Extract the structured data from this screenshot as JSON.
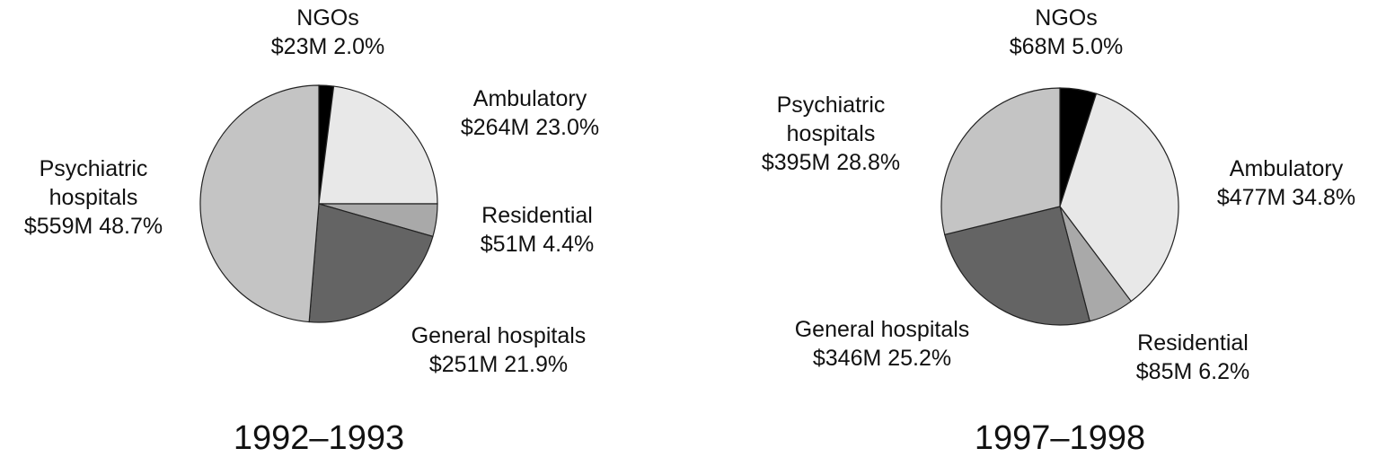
{
  "chart_data": [
    {
      "type": "pie",
      "title": "1992–1993",
      "slices": [
        {
          "name": "NGOs",
          "value_label": "$23M 2.0%",
          "value": 23,
          "percent": 2.0,
          "color": "#000000"
        },
        {
          "name": "Ambulatory",
          "value_label": "$264M 23.0%",
          "value": 264,
          "percent": 23.0,
          "color": "#e8e8e8"
        },
        {
          "name": "Residential",
          "value_label": "$51M 4.4%",
          "value": 51,
          "percent": 4.4,
          "color": "#a9a9a9"
        },
        {
          "name": "General hospitals",
          "value_label": "$251M 21.9%",
          "value": 251,
          "percent": 21.9,
          "color": "#646464"
        },
        {
          "name": "Psychiatric\nhospitals",
          "value_label": "$559M 48.7%",
          "value": 559,
          "percent": 48.7,
          "color": "#c4c4c4"
        }
      ]
    },
    {
      "type": "pie",
      "title": "1997–1998",
      "slices": [
        {
          "name": "NGOs",
          "value_label": "$68M 5.0%",
          "value": 68,
          "percent": 5.0,
          "color": "#000000"
        },
        {
          "name": "Ambulatory",
          "value_label": "$477M 34.8%",
          "value": 477,
          "percent": 34.8,
          "color": "#e8e8e8"
        },
        {
          "name": "Residential",
          "value_label": "$85M 6.2%",
          "value": 85,
          "percent": 6.2,
          "color": "#a9a9a9"
        },
        {
          "name": "General hospitals",
          "value_label": "$346M 25.2%",
          "value": 346,
          "percent": 25.2,
          "color": "#646464"
        },
        {
          "name": "Psychiatric\nhospitals",
          "value_label": "$395M 28.8%",
          "value": 395,
          "percent": 28.8,
          "color": "#c4c4c4"
        }
      ]
    }
  ]
}
